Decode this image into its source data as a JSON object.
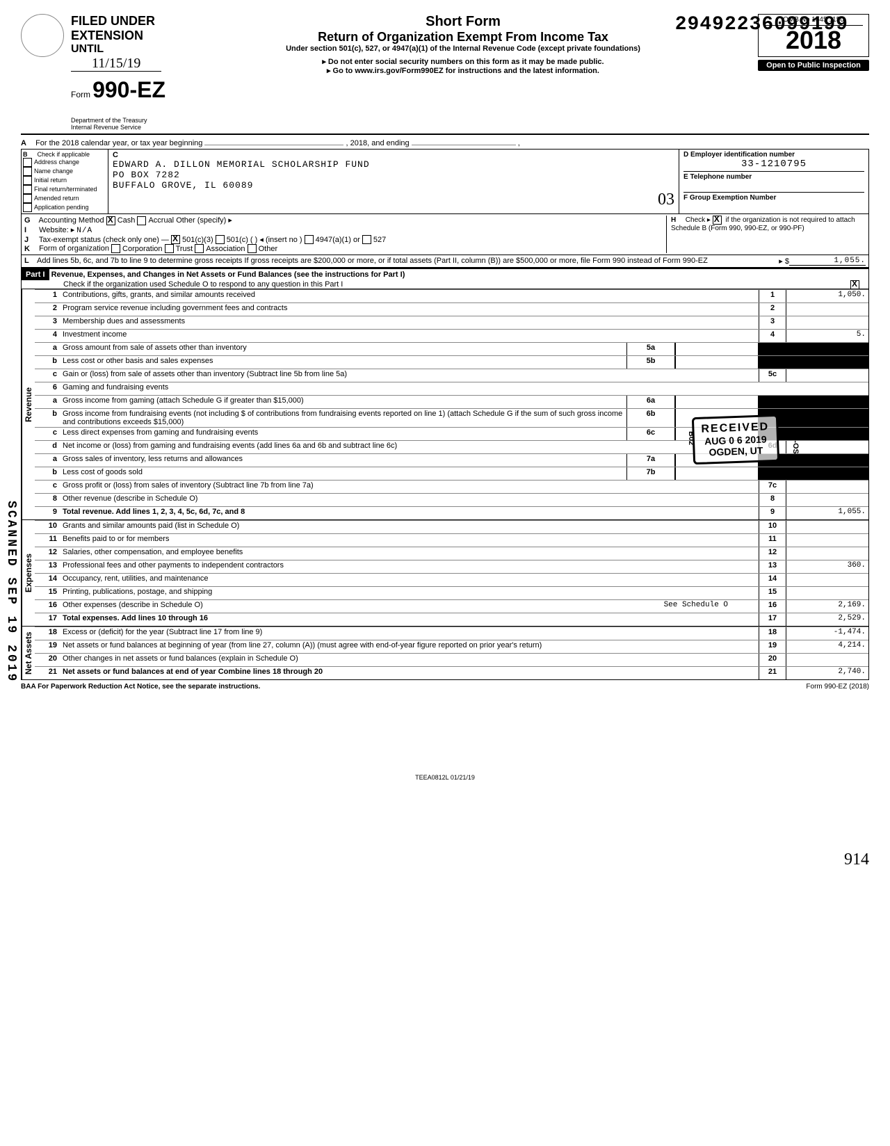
{
  "dln": "29492236099199",
  "filed_under_extension": "FILED UNDER EXTENSION",
  "until_label": "UNTIL",
  "until_date": "11/15/19",
  "form_prefix": "Form",
  "form_number": "990-EZ",
  "short_form": "Short Form",
  "return_title": "Return of Organization Exempt From Income Tax",
  "under_section": "Under section 501(c), 527, or 4947(a)(1) of the Internal Revenue Code (except private foundations)",
  "ssn_warning": "Do not enter social security numbers on this form as it may be made public.",
  "goto": "Go to www.irs.gov/Form990EZ for instructions and the latest information.",
  "dept": "Department of the Treasury\nInternal Revenue Service",
  "omb": "OMB No 1545 1150",
  "tax_year": "2018",
  "open_public": "Open to Public Inspection",
  "line_A": "For the 2018 calendar year, or tax year beginning",
  "line_A_mid": ", 2018, and ending",
  "B_label": "Check if applicable",
  "B_opts": [
    "Address change",
    "Name change",
    "Initial return",
    "Final return/terminated",
    "Amended return",
    "Application pending"
  ],
  "C_label": "C",
  "org_name": "EDWARD A. DILLON MEMORIAL SCHOLARSHIP FUND",
  "org_addr1": "PO BOX 7282",
  "org_addr2": "BUFFALO GROVE, IL 60089",
  "D_label": "D Employer identification number",
  "ein": "33-1210795",
  "E_label": "E Telephone number",
  "F_label": "F Group Exemption Number",
  "icr_03": "03",
  "G_label": "Accounting Method",
  "G_cash": "Cash",
  "G_accrual": "Accrual",
  "G_other": "Other (specify) ▸",
  "H_label": "Check ▸",
  "H_text": "if the organization is not required to attach Schedule B (Form 990, 990-EZ, or 990-PF)",
  "I_label": "Website: ▸",
  "I_val": "N/A",
  "J_label": "Tax-exempt status (check only one) —",
  "J_501c3": "501(c)(3)",
  "J_501c": "501(c) (",
  "J_insert": ") ◂ (insert no )",
  "J_4947": "4947(a)(1) or",
  "J_527": "527",
  "K_label": "Form of organization",
  "K_opts": [
    "Corporation",
    "Trust",
    "Association",
    "Other"
  ],
  "L_text": "Add lines 5b, 6c, and 7b to line 9 to determine gross receipts  If gross receipts are $200,000 or more, or if total assets (Part II, column (B)) are $500,000 or more, file Form 990 instead of Form 990-EZ",
  "L_arrow": "▸ $",
  "L_val": "1,055.",
  "part1_label": "Part I",
  "part1_title": "Revenue, Expenses, and Changes in Net Assets or Fund Balances (see the instructions for Part I)",
  "part1_check": "Check if the organization used Schedule O to respond to any question in this Part I",
  "sections": {
    "revenue": "Revenue",
    "expenses": "Expenses",
    "netassets": "Net Assets"
  },
  "lines": {
    "1": {
      "d": "Contributions, gifts, grants, and similar amounts received",
      "box": "1",
      "v": "1,050."
    },
    "2": {
      "d": "Program service revenue including government fees and contracts",
      "box": "2",
      "v": ""
    },
    "3": {
      "d": "Membership dues and assessments",
      "box": "3",
      "v": ""
    },
    "4": {
      "d": "Investment income",
      "box": "4",
      "v": "5."
    },
    "5a": {
      "d": "Gross amount from sale of assets other than inventory",
      "sub": "a",
      "sbox": "5a"
    },
    "5b": {
      "d": "Less  cost or other basis and sales expenses",
      "sub": "b",
      "sbox": "5b"
    },
    "5c": {
      "d": "Gain or (loss) from sale of assets other than inventory (Subtract line 5b from line 5a)",
      "sub": "c",
      "box": "5c",
      "v": ""
    },
    "6": {
      "d": "Gaming and fundraising events"
    },
    "6a": {
      "d": "Gross income from gaming (attach Schedule G if greater than $15,000)",
      "sub": "a",
      "sbox": "6a"
    },
    "6b": {
      "d": "Gross income from fundraising events (not including  $                    of contributions from fundraising events reported on line 1) (attach Schedule G if the sum of such gross income and contributions exceeds $15,000)",
      "sub": "b",
      "sbox": "6b"
    },
    "6c": {
      "d": "Less  direct expenses from gaming and fundraising events",
      "sub": "c",
      "sbox": "6c"
    },
    "6d": {
      "d": "Net income or (loss) from gaming and fundraising events (add lines 6a and 6b and subtract line 6c)",
      "sub": "d",
      "box": "6d",
      "v": ""
    },
    "7a": {
      "d": "Gross sales of inventory, less returns and allowances",
      "sub": "a",
      "sbox": "7a"
    },
    "7b": {
      "d": "Less  cost of goods sold",
      "sub": "b",
      "sbox": "7b"
    },
    "7c": {
      "d": "Gross profit or (loss) from sales of inventory (Subtract line 7b from line 7a)",
      "sub": "c",
      "box": "7c",
      "v": ""
    },
    "8": {
      "d": "Other revenue (describe in Schedule O)",
      "box": "8",
      "v": ""
    },
    "9": {
      "d": "Total revenue. Add lines 1, 2, 3, 4, 5c, 6d, 7c, and 8",
      "box": "9",
      "v": "1,055.",
      "bold": true
    },
    "10": {
      "d": "Grants and similar amounts paid (list in Schedule O)",
      "box": "10",
      "v": ""
    },
    "11": {
      "d": "Benefits paid to or for members",
      "box": "11",
      "v": ""
    },
    "12": {
      "d": "Salaries, other compensation, and employee benefits",
      "box": "12",
      "v": ""
    },
    "13": {
      "d": "Professional fees and other payments to independent contractors",
      "box": "13",
      "v": "360."
    },
    "14": {
      "d": "Occupancy, rent, utilities, and maintenance",
      "box": "14",
      "v": ""
    },
    "15": {
      "d": "Printing, publications, postage, and shipping",
      "box": "15",
      "v": ""
    },
    "16": {
      "d": "Other expenses (describe in Schedule O)",
      "box": "16",
      "v": "2,169.",
      "note": "See Schedule O"
    },
    "17": {
      "d": "Total expenses. Add lines 10 through 16",
      "box": "17",
      "v": "2,529.",
      "bold": true
    },
    "18": {
      "d": "Excess or (deficit) for the year (Subtract line 17 from line 9)",
      "box": "18",
      "v": "-1,474."
    },
    "19": {
      "d": "Net assets or fund balances at beginning of year (from line 27, column (A)) (must agree with end-of-year figure reported on prior year's return)",
      "box": "19",
      "v": "4,214."
    },
    "20": {
      "d": "Other changes in net assets or fund balances (explain in Schedule O)",
      "box": "20",
      "v": ""
    },
    "21": {
      "d": "Net assets or fund balances at end of year  Combine lines 18 through 20",
      "box": "21",
      "v": "2,740.",
      "bold": true
    }
  },
  "baa": "BAA  For Paperwork Reduction Act Notice, see the separate instructions.",
  "form_footer": "Form 990-EZ (2018)",
  "teea": "TEEA0812L   01/21/19",
  "received_stamp": {
    "l1": "RECEIVED",
    "l2": "AUG 0 6 2019",
    "l3": "OGDEN, UT"
  },
  "scanned": "SCANNED SEP 19 2019",
  "handwrite_914": "914",
  "irs_osc": "IRS-OSC",
  "b02": "B02"
}
